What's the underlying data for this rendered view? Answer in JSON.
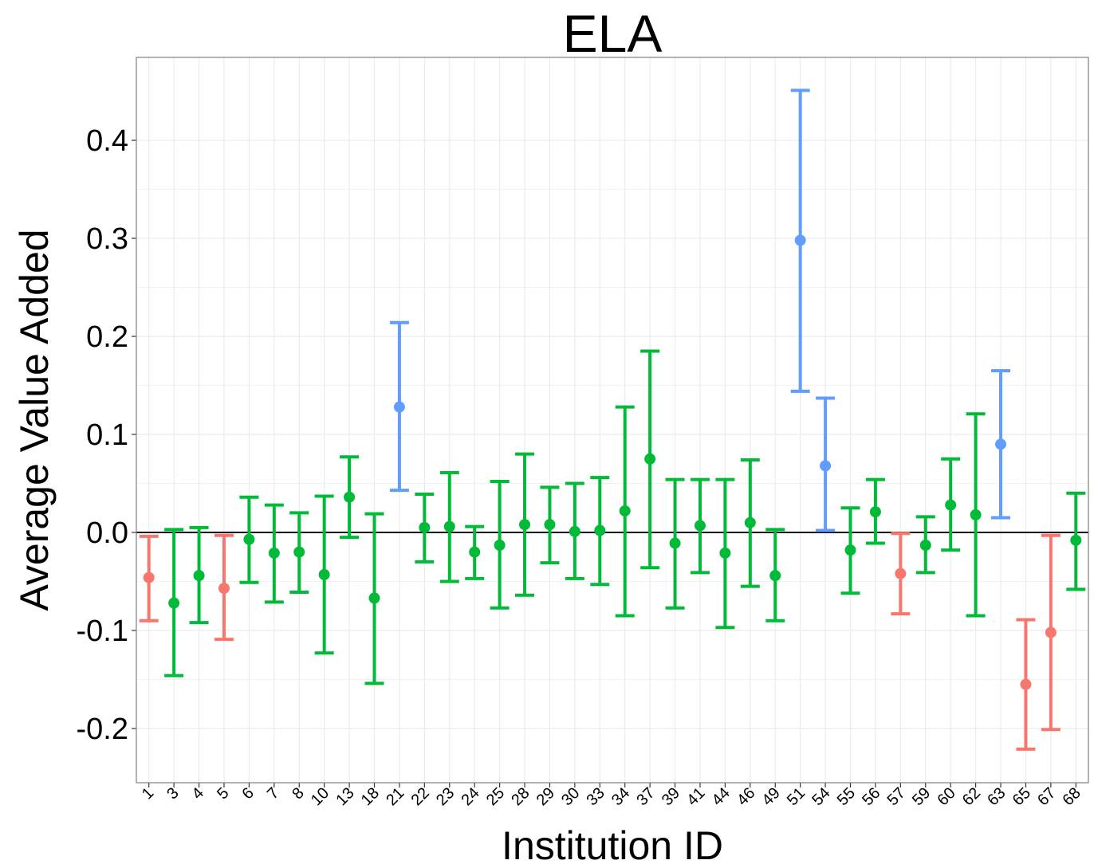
{
  "chart_data": {
    "type": "errorbar",
    "title": "ELA",
    "x_label": "Institution ID",
    "y_label": "Average Value Added",
    "categories": [
      "1",
      "3",
      "4",
      "5",
      "6",
      "7",
      "8",
      "10",
      "13",
      "18",
      "21",
      "22",
      "23",
      "24",
      "25",
      "28",
      "29",
      "30",
      "33",
      "34",
      "37",
      "39",
      "41",
      "44",
      "46",
      "49",
      "51",
      "54",
      "55",
      "56",
      "57",
      "59",
      "60",
      "62",
      "63",
      "65",
      "67",
      "68"
    ],
    "series": [
      {
        "values": [
          -0.046,
          -0.072,
          -0.044,
          -0.057,
          -0.007,
          -0.021,
          -0.02,
          -0.043,
          0.036,
          -0.067,
          0.128,
          0.005,
          0.006,
          -0.02,
          -0.013,
          0.008,
          0.008,
          0.001,
          0.002,
          0.022,
          0.075,
          -0.011,
          0.007,
          -0.021,
          0.01,
          -0.044,
          0.298,
          0.068,
          -0.018,
          0.021,
          -0.042,
          -0.013,
          0.028,
          0.018,
          0.09,
          -0.155,
          -0.102,
          -0.008
        ],
        "lower": [
          -0.09,
          -0.146,
          -0.092,
          -0.109,
          -0.051,
          -0.071,
          -0.061,
          -0.123,
          -0.005,
          -0.154,
          0.043,
          -0.03,
          -0.05,
          -0.047,
          -0.077,
          -0.064,
          -0.031,
          -0.047,
          -0.053,
          -0.085,
          -0.036,
          -0.077,
          -0.041,
          -0.097,
          -0.055,
          -0.09,
          0.144,
          0.002,
          -0.062,
          -0.011,
          -0.083,
          -0.041,
          -0.018,
          -0.085,
          0.015,
          -0.221,
          -0.201,
          -0.058
        ],
        "upper": [
          -0.004,
          0.003,
          0.005,
          -0.003,
          0.036,
          0.028,
          0.02,
          0.037,
          0.077,
          0.019,
          0.214,
          0.039,
          0.061,
          0.006,
          0.052,
          0.08,
          0.046,
          0.05,
          0.056,
          0.128,
          0.185,
          0.054,
          0.054,
          0.054,
          0.074,
          0.003,
          0.451,
          0.137,
          0.025,
          0.054,
          -0.001,
          0.016,
          0.075,
          0.121,
          0.165,
          -0.089,
          -0.003,
          0.04
        ],
        "colors": [
          "#F8766D",
          "#00BA38",
          "#00BA38",
          "#F8766D",
          "#00BA38",
          "#00BA38",
          "#00BA38",
          "#00BA38",
          "#00BA38",
          "#00BA38",
          "#619CFF",
          "#00BA38",
          "#00BA38",
          "#00BA38",
          "#00BA38",
          "#00BA38",
          "#00BA38",
          "#00BA38",
          "#00BA38",
          "#00BA38",
          "#00BA38",
          "#00BA38",
          "#00BA38",
          "#00BA38",
          "#00BA38",
          "#00BA38",
          "#619CFF",
          "#619CFF",
          "#00BA38",
          "#00BA38",
          "#F8766D",
          "#00BA38",
          "#00BA38",
          "#00BA38",
          "#619CFF",
          "#F8766D",
          "#F8766D",
          "#00BA38"
        ]
      }
    ],
    "ylim": [
      -0.2553,
      0.4846
    ],
    "yticks": [
      {
        "value": -0.2,
        "label": "-0.2"
      },
      {
        "value": -0.1,
        "label": "-0.1"
      },
      {
        "value": 0,
        "label": "0.0"
      },
      {
        "value": 0.1,
        "label": "0.1"
      },
      {
        "value": 0.2,
        "label": "0.2"
      },
      {
        "value": 0.3,
        "label": "0.3"
      },
      {
        "value": 0.4,
        "label": "0.4"
      }
    ],
    "hline": 0,
    "grid": true
  }
}
